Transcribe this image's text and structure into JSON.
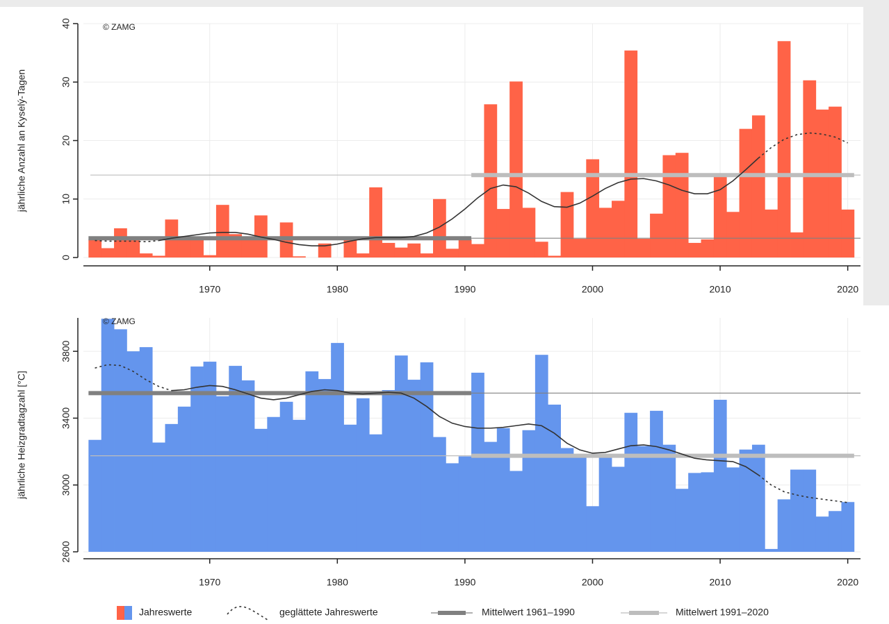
{
  "chart_data": [
    {
      "type": "bar",
      "ylabel": "jährliche Anzahl an Kyselý-Tagen",
      "annotation": "© ZAMG",
      "color": "#ff6347",
      "x": [
        1961,
        1962,
        1963,
        1964,
        1965,
        1966,
        1967,
        1968,
        1969,
        1970,
        1971,
        1972,
        1973,
        1974,
        1975,
        1976,
        1977,
        1978,
        1979,
        1980,
        1981,
        1982,
        1983,
        1984,
        1985,
        1986,
        1987,
        1988,
        1989,
        1990,
        1991,
        1992,
        1993,
        1994,
        1995,
        1996,
        1997,
        1998,
        1999,
        2000,
        2001,
        2002,
        2003,
        2004,
        2005,
        2006,
        2007,
        2008,
        2009,
        2010,
        2011,
        2012,
        2013,
        2014,
        2015,
        2016,
        2017,
        2018,
        2019,
        2020
      ],
      "values": [
        3.1,
        1.6,
        5,
        3.1,
        0.7,
        0.3,
        6.5,
        3.6,
        3.4,
        0.4,
        9,
        4,
        3.4,
        7.2,
        0,
        6,
        0.2,
        0,
        2.4,
        0,
        3,
        0.7,
        12,
        2.5,
        1.7,
        2.4,
        0.7,
        10,
        1.5,
        3.1,
        2.3,
        26.2,
        8.3,
        30.1,
        8.5,
        2.7,
        0.3,
        11.2,
        3.2,
        16.8,
        8.5,
        9.7,
        35.4,
        3.2,
        7.5,
        17.5,
        17.9,
        2.5,
        3.1,
        13.8,
        7.8,
        22,
        24.3,
        8.2,
        37,
        4.3,
        30.3,
        25.3,
        25.8,
        8.2
      ],
      "smoothed": [
        null,
        null,
        null,
        null,
        null,
        2.9,
        3.3,
        3.6,
        3.9,
        4.2,
        4.3,
        4.3,
        4.0,
        3.5,
        3.1,
        2.6,
        2.2,
        2.0,
        2.0,
        2.3,
        2.8,
        3.2,
        3.4,
        3.4,
        3.4,
        3.6,
        4.2,
        5.2,
        6.6,
        8.3,
        10.2,
        11.8,
        12.4,
        12.1,
        11.0,
        9.6,
        8.7,
        8.6,
        9.3,
        10.5,
        11.8,
        12.8,
        13.4,
        13.5,
        13.1,
        12.4,
        11.5,
        10.9,
        10.9,
        11.6,
        13.1,
        15.0,
        17.0,
        null,
        null,
        null,
        null,
        null,
        null,
        null
      ],
      "smoothed_dashed": [
        2.9,
        2.8,
        2.8,
        2.8,
        2.7,
        2.9,
        null,
        null,
        null,
        null,
        null,
        null,
        null,
        null,
        null,
        null,
        null,
        null,
        null,
        null,
        null,
        null,
        null,
        null,
        null,
        null,
        null,
        null,
        null,
        null,
        null,
        null,
        null,
        null,
        null,
        null,
        null,
        null,
        null,
        null,
        null,
        null,
        null,
        null,
        null,
        null,
        null,
        null,
        null,
        null,
        null,
        null,
        17.0,
        18.8,
        20.2,
        21.0,
        21.3,
        21.1,
        20.6,
        19.6
      ],
      "means": [
        {
          "value": 3.3,
          "period": [
            1961,
            1990
          ],
          "color": "#808080"
        },
        {
          "value": 14.1,
          "period": [
            1991,
            2020
          ],
          "color": "#bdbdbd"
        }
      ],
      "xlim": [
        1960.1,
        2021
      ],
      "xticks": [
        1970,
        1980,
        1990,
        2000,
        2010,
        2020
      ],
      "ylim": [
        0,
        40
      ],
      "yticks": [
        0,
        10,
        20,
        30,
        40
      ],
      "grid": true
    },
    {
      "type": "bar",
      "ylabel": "jährliche Heizgradtagzahl [°C]",
      "annotation": "© ZAMG",
      "color": "#6495ed",
      "x": [
        1961,
        1962,
        1963,
        1964,
        1965,
        1966,
        1967,
        1968,
        1969,
        1970,
        1971,
        1972,
        1973,
        1974,
        1975,
        1976,
        1977,
        1978,
        1979,
        1980,
        1981,
        1982,
        1983,
        1984,
        1985,
        1986,
        1987,
        1988,
        1989,
        1990,
        1991,
        1992,
        1993,
        1994,
        1995,
        1996,
        1997,
        1998,
        1999,
        2000,
        2001,
        2002,
        2003,
        2004,
        2005,
        2006,
        2007,
        2008,
        2009,
        2010,
        2011,
        2012,
        2013,
        2014,
        2015,
        2016,
        2017,
        2018,
        2019,
        2020
      ],
      "values": [
        3270,
        3995,
        3932,
        3800,
        3825,
        3254,
        3365,
        3469,
        3709,
        3738,
        3531,
        3713,
        3626,
        3336,
        3407,
        3498,
        3390,
        3680,
        3634,
        3850,
        3361,
        3519,
        3303,
        3568,
        3775,
        3630,
        3734,
        3287,
        3130,
        3171,
        3672,
        3258,
        3340,
        3084,
        3328,
        3779,
        3481,
        3221,
        3171,
        2873,
        3171,
        3109,
        3432,
        3233,
        3444,
        3241,
        2977,
        3072,
        3076,
        3510,
        3105,
        3212,
        3241,
        2617,
        2914,
        3092,
        3092,
        2811,
        2844,
        2898
      ],
      "smoothed": [
        null,
        null,
        null,
        null,
        null,
        null,
        3565,
        3570,
        3585,
        3595,
        3590,
        3570,
        3545,
        3520,
        3510,
        3520,
        3540,
        3560,
        3570,
        3565,
        3550,
        3545,
        3550,
        3555,
        3550,
        3520,
        3470,
        3410,
        3370,
        3350,
        3340,
        3340,
        3345,
        3355,
        3365,
        3355,
        3310,
        3250,
        3210,
        3190,
        3195,
        3215,
        3235,
        3240,
        3230,
        3210,
        3185,
        3160,
        3150,
        3145,
        3140,
        3110,
        3060,
        null,
        null,
        null,
        null,
        null,
        null,
        null
      ],
      "smoothed_dashed": [
        3700,
        3720,
        3715,
        3680,
        3630,
        3590,
        3565,
        null,
        null,
        null,
        null,
        null,
        null,
        null,
        null,
        null,
        null,
        null,
        null,
        null,
        null,
        null,
        null,
        null,
        null,
        null,
        null,
        null,
        null,
        null,
        null,
        null,
        null,
        null,
        null,
        null,
        null,
        null,
        null,
        null,
        null,
        null,
        null,
        null,
        null,
        null,
        null,
        null,
        null,
        null,
        null,
        null,
        3060,
        3000,
        2960,
        2940,
        2925,
        2915,
        2905,
        2895
      ],
      "means": [
        {
          "value": 3550,
          "period": [
            1961,
            1990
          ],
          "color": "#808080"
        },
        {
          "value": 3175,
          "period": [
            1991,
            2020
          ],
          "color": "#bdbdbd"
        }
      ],
      "xlim": [
        1960.1,
        2021
      ],
      "xticks": [
        1970,
        1980,
        1990,
        2000,
        2010,
        2020
      ],
      "ylim": [
        2600,
        4000
      ],
      "yticks": [
        2600,
        3000,
        3400,
        3800
      ],
      "grid": true
    }
  ],
  "legend": [
    {
      "label": "Jahreswerte",
      "colors": [
        "#ff6347",
        "#6495ed"
      ]
    },
    {
      "label": "geglättete Jahreswerte",
      "color": "#333333"
    },
    {
      "label": "Mittelwert 1961–1990",
      "color": "#808080"
    },
    {
      "label": "Mittelwert 1991–2020",
      "color": "#bdbdbd"
    }
  ]
}
